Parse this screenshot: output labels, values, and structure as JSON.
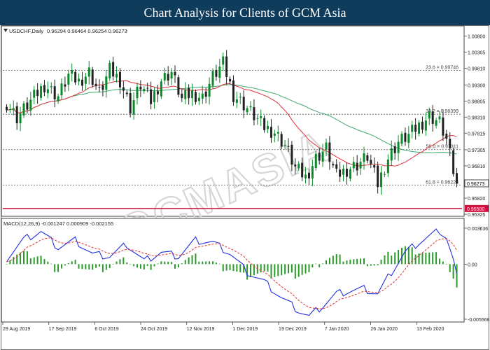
{
  "header": {
    "title": "Chart Analysis for Clients of GCM Asia"
  },
  "colors": {
    "header_bg": "#103c5c",
    "candle_up": "#0b8a2a",
    "candle_down": "#222222",
    "ma_fast": "#e0303a",
    "ma_slow": "#3caa6a",
    "support_line": "#d01040",
    "macd_line": "#1f2fe0",
    "signal_line": "#e03030",
    "histogram": "#2a9a2a",
    "watermark": "#dcdcdc"
  },
  "watermark": "GCMASIA",
  "price_panel": {
    "symbol_label": "USDCHF,Daily",
    "ohlc_label": "0.96294 0.96464 0.96254 0.96273",
    "triangle_icon": "down-triangle-icon"
  },
  "macd_panel": {
    "label": "MACD(12,26,9) -0.001247 0.000909 -0.002155"
  },
  "chart_data": {
    "type": "candlestick",
    "symbol": "USDCHF",
    "timeframe": "Daily",
    "ylim": [
      0.95325,
      1.0105
    ],
    "y_ticks": [
      "1.00800",
      "1.00305",
      "0.99810",
      "0.99300",
      "0.98805",
      "0.98310",
      "0.97815",
      "0.97305",
      "0.96810",
      "0.95820",
      "0.95325"
    ],
    "x_labels": [
      "29 Aug 2019",
      "17 Sep 2019",
      "6 Oct 2019",
      "24 Oct 2019",
      "12 Nov 2019",
      "1 Dec 2019",
      "19 Dec 2019",
      "7 Jan 2020",
      "26 Jan 2020",
      "13 Feb 2020"
    ],
    "fib_levels": [
      {
        "label": "23.6 = 0.99746",
        "value": 0.99746
      },
      {
        "label": "38.2 = 0.98399",
        "value": 0.98399
      },
      {
        "label": "50.0 = 0.97311",
        "value": 0.97311
      },
      {
        "label": "61.8 = 0.96223",
        "value": 0.96223
      }
    ],
    "support": {
      "label": "0.95500",
      "value": 0.955
    },
    "current_price": {
      "label": "0.96273",
      "value": 0.96273
    },
    "close_anchors": [
      [
        0,
        0.9875
      ],
      [
        3,
        0.983
      ],
      [
        7,
        0.988
      ],
      [
        11,
        0.993
      ],
      [
        15,
        0.9895
      ],
      [
        18,
        0.996
      ],
      [
        21,
        0.994
      ],
      [
        24,
        0.997
      ],
      [
        27,
        0.9905
      ],
      [
        30,
        0.9975
      ],
      [
        33,
        0.9945
      ],
      [
        36,
        0.986
      ],
      [
        39,
        0.993
      ],
      [
        42,
        0.988
      ],
      [
        45,
        0.9945
      ],
      [
        48,
        0.997
      ],
      [
        51,
        0.9885
      ],
      [
        54,
        0.9905
      ],
      [
        57,
        0.989
      ],
      [
        60,
        0.9955
      ],
      [
        63,
        0.9995
      ],
      [
        66,
        0.99
      ],
      [
        69,
        0.987
      ],
      [
        72,
        0.9835
      ],
      [
        75,
        0.98
      ],
      [
        78,
        0.9785
      ],
      [
        81,
        0.9745
      ],
      [
        84,
        0.9675
      ],
      [
        87,
        0.9645
      ],
      [
        90,
        0.9705
      ],
      [
        93,
        0.9735
      ],
      [
        96,
        0.965
      ],
      [
        99,
        0.967
      ],
      [
        102,
        0.9685
      ],
      [
        105,
        0.971
      ],
      [
        108,
        0.9625
      ],
      [
        111,
        0.9705
      ],
      [
        114,
        0.9755
      ],
      [
        117,
        0.9775
      ],
      [
        120,
        0.9805
      ],
      [
        123,
        0.9835
      ],
      [
        126,
        0.9815
      ],
      [
        128,
        0.976
      ],
      [
        130,
        0.9665
      ],
      [
        131,
        0.9627
      ]
    ],
    "macd_ylim": [
      -0.005568,
      0.003636
    ],
    "macd_ticks": [
      "0.003636",
      "0.00",
      "-0.005568"
    ],
    "macd_anchors": [
      [
        0,
        0.0006
      ],
      [
        5,
        0.0025
      ],
      [
        10,
        0.0033
      ],
      [
        15,
        0.0017
      ],
      [
        20,
        0.0024
      ],
      [
        25,
        0.001
      ],
      [
        30,
        0.0008
      ],
      [
        35,
        0.002
      ],
      [
        40,
        0.0003
      ],
      [
        45,
        0.0012
      ],
      [
        50,
        0.0008
      ],
      [
        55,
        0.0024
      ],
      [
        60,
        0.0022
      ],
      [
        65,
        0.0011
      ],
      [
        70,
        -0.0008
      ],
      [
        75,
        -0.0018
      ],
      [
        80,
        -0.0034
      ],
      [
        85,
        -0.0047
      ],
      [
        88,
        -0.0053
      ],
      [
        92,
        -0.0042
      ],
      [
        96,
        -0.003
      ],
      [
        100,
        -0.0027
      ],
      [
        104,
        -0.0025
      ],
      [
        108,
        -0.003
      ],
      [
        112,
        -0.0008
      ],
      [
        116,
        0.0012
      ],
      [
        120,
        0.0022
      ],
      [
        124,
        0.003
      ],
      [
        126,
        0.0034
      ],
      [
        128,
        0.0027
      ],
      [
        130,
        0.0004
      ],
      [
        131,
        -0.0012
      ]
    ],
    "grid": false
  }
}
